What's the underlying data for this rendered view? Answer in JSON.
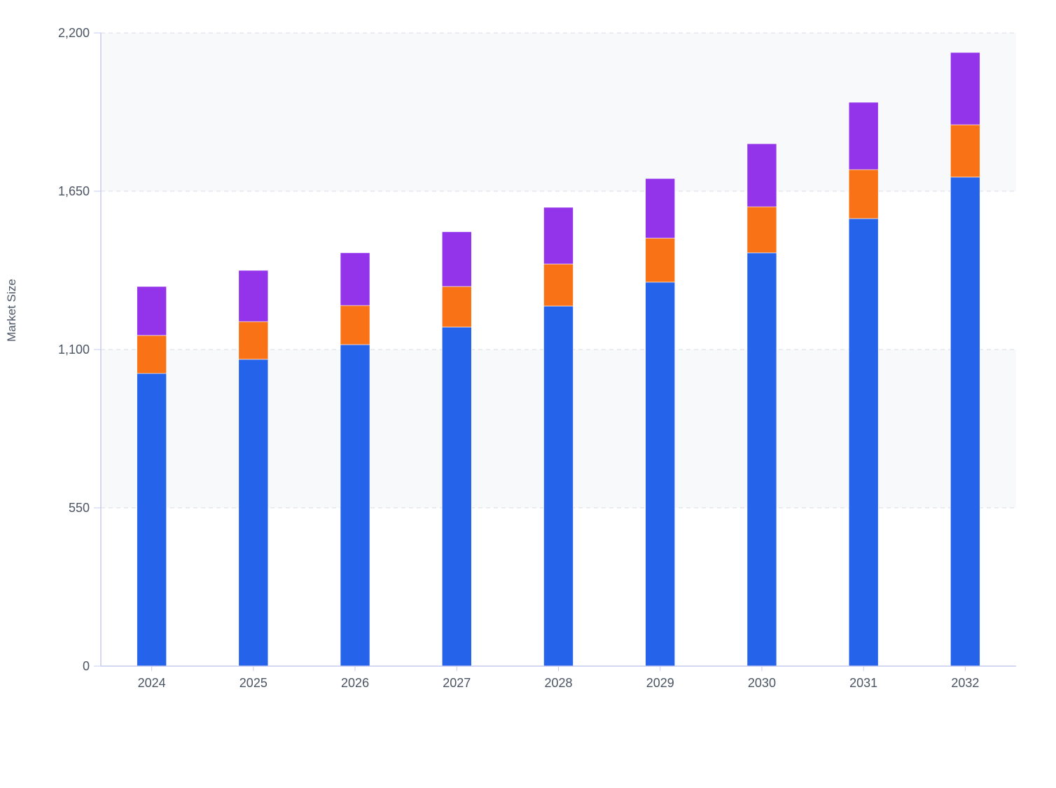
{
  "chart_data": {
    "type": "bar",
    "stacked": true,
    "title": "",
    "xlabel": "",
    "ylabel": "Market Size",
    "ylim": [
      0,
      2200
    ],
    "yticks": [
      0,
      550,
      1100,
      1650,
      2200
    ],
    "ytick_labels": [
      "0",
      "550",
      "1,100",
      "1,650",
      "2,200"
    ],
    "grid": true,
    "legend": "none",
    "categories": [
      "2024",
      "2025",
      "2026",
      "2027",
      "2028",
      "2029",
      "2030",
      "2031",
      "2032"
    ],
    "series": [
      {
        "color": "#2563eb",
        "values": [
          1017,
          1066,
          1117,
          1178,
          1251,
          1334,
          1436,
          1555,
          1699
        ]
      },
      {
        "color": "#f97316",
        "values": [
          132,
          131,
          136,
          141,
          146,
          153,
          160,
          170,
          182
        ]
      },
      {
        "color": "#9333ea",
        "values": [
          170,
          178,
          183,
          190,
          197,
          207,
          219,
          234,
          251
        ]
      }
    ],
    "colors": {
      "axis": "#c7cbf0",
      "grid": "#d9dce3",
      "band": "#f8f9fb",
      "text": "#4b5563"
    }
  }
}
